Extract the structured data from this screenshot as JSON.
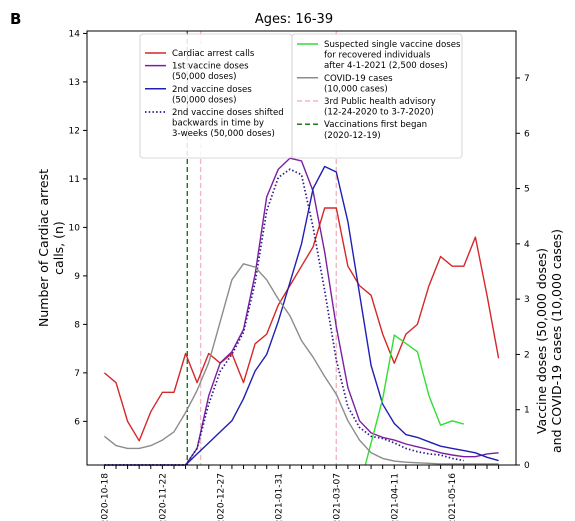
{
  "chart_data": {
    "type": "line",
    "panel_label": "B",
    "title": "Ages: 16-39",
    "ylabel_left": [
      "Number of Cardiac arrest",
      "calls, (n)"
    ],
    "ylabel_right": [
      "Vaccine doses (50,000 doses)",
      "and COVID-19 cases (10,000 cases)"
    ],
    "ylim_left": [
      5.1,
      14.05
    ],
    "ylim_right": [
      0,
      7.85
    ],
    "yticks_left": [
      "6",
      "7",
      "8",
      "9",
      "10",
      "11",
      "12",
      "13",
      "14"
    ],
    "yticks_right": [
      "0",
      "1",
      "2",
      "3",
      "4",
      "5",
      "6",
      "7"
    ],
    "xticks": [
      "2020-10-18",
      "2020-11-22",
      "2020-12-27",
      "2021-01-31",
      "2021-03-07",
      "2021-04-11",
      "2021-05-16"
    ],
    "x_range_weeks": [
      -1.5,
      35.5
    ],
    "grid": false,
    "legend_left": [
      {
        "label": [
          "Cardiac arrest calls"
        ],
        "color": "#d62728",
        "style": "solid"
      },
      {
        "label": [
          "1st vaccine doses",
          "(50,000 doses)"
        ],
        "color": "#7b1fa2",
        "style": "solid"
      },
      {
        "label": [
          "2nd vaccine doses",
          "(50,000 doses)"
        ],
        "color": "#1f1fb4",
        "style": "solid"
      },
      {
        "label": [
          "2nd vaccine doses shifted",
          "backwards in time by",
          "3-weeks (50,000 doses)"
        ],
        "color": "#2a1a8a",
        "style": "dotted"
      }
    ],
    "legend_right": [
      {
        "label": [
          "Suspected single vaccine doses",
          "for recovered individuals",
          "after 4-1-2021 (2,500 doses)"
        ],
        "color": "#33dd33",
        "style": "solid"
      },
      {
        "label": [
          "COVID-19 cases",
          "(10,000 cases)"
        ],
        "color": "#8c8c8c",
        "style": "solid"
      },
      {
        "label": [
          "3rd Public health advisory",
          "(12-24-2020 to 3-7-2020)"
        ],
        "color": "#f4b6c2",
        "style": "dashed"
      },
      {
        "label": [
          "Vaccinations first began",
          "(2020-12-19)"
        ],
        "color": "#1a7a1a",
        "style": "dashed"
      }
    ],
    "vlines": [
      {
        "x": 7.15,
        "color": "#1a7a1a",
        "style": "dashed"
      },
      {
        "x": 8.3,
        "color": "#f4b6c2",
        "style": "dashed"
      },
      {
        "x": 20.0,
        "color": "#f4b6c2",
        "style": "dashed"
      }
    ],
    "series": [
      {
        "axis": "left",
        "color": "#d62728",
        "style": "solid",
        "x": [
          0,
          1,
          2,
          3,
          4,
          5,
          6,
          7,
          8,
          9,
          10,
          11,
          12,
          13,
          14,
          15,
          16,
          17,
          18,
          19,
          20,
          21,
          22,
          23,
          24,
          25,
          26,
          27,
          28,
          29,
          30,
          31,
          32,
          33,
          34
        ],
        "values": [
          7.0,
          6.8,
          6.0,
          5.6,
          6.2,
          6.6,
          6.6,
          7.4,
          6.8,
          7.4,
          7.2,
          7.4,
          6.8,
          7.6,
          7.8,
          8.4,
          8.8,
          9.2,
          9.6,
          10.4,
          10.4,
          9.2,
          8.8,
          8.6,
          7.8,
          7.2,
          7.8,
          8.0,
          8.8,
          9.4,
          9.2,
          9.2,
          9.8,
          8.6,
          7.3
        ]
      },
      {
        "axis": "right",
        "color": "#7b1fa2",
        "style": "solid",
        "x": [
          7,
          8,
          9,
          10,
          11,
          12,
          13,
          14,
          15,
          16,
          17,
          18,
          19,
          20,
          21,
          22,
          23,
          24,
          25,
          26,
          27,
          28,
          29,
          30,
          31,
          32,
          33,
          34
        ],
        "values": [
          0,
          0.3,
          1.25,
          1.85,
          2.05,
          2.45,
          3.45,
          4.85,
          5.35,
          5.55,
          5.5,
          4.95,
          3.85,
          2.5,
          1.4,
          0.8,
          0.58,
          0.5,
          0.45,
          0.38,
          0.33,
          0.28,
          0.22,
          0.18,
          0.15,
          0.15,
          0.2,
          0.22
        ]
      },
      {
        "axis": "right",
        "color": "#1f1fb4",
        "style": "solid",
        "x": [
          0,
          1,
          2,
          3,
          4,
          5,
          6,
          7,
          8,
          9,
          10,
          11,
          12,
          13,
          14,
          15,
          16,
          17,
          18,
          19,
          20,
          21,
          22,
          23,
          24,
          25,
          26,
          27,
          28,
          29,
          30,
          31,
          32,
          33,
          34
        ],
        "values": [
          0,
          0,
          0,
          0,
          0,
          0,
          0,
          0,
          0.2,
          0.4,
          0.6,
          0.8,
          1.2,
          1.7,
          2.0,
          2.6,
          3.3,
          4.0,
          5.0,
          5.4,
          5.3,
          4.4,
          3.1,
          1.8,
          1.1,
          0.75,
          0.55,
          0.5,
          0.42,
          0.34,
          0.3,
          0.26,
          0.22,
          0.14,
          0.08
        ]
      },
      {
        "axis": "right",
        "color": "#2a1a8a",
        "style": "dotted",
        "x": [
          0,
          1,
          2,
          3,
          4,
          5,
          6,
          7,
          8,
          9,
          10,
          11,
          12,
          13,
          14,
          15,
          16,
          17,
          18,
          19,
          20,
          21,
          22,
          23,
          24,
          25,
          26,
          27,
          28,
          29,
          30,
          31
        ],
        "values": [
          0,
          0,
          0,
          0,
          0,
          0,
          0,
          0,
          0.3,
          1.1,
          1.7,
          2.0,
          2.4,
          3.3,
          4.6,
          5.2,
          5.35,
          5.25,
          4.3,
          3.15,
          1.9,
          1.05,
          0.68,
          0.52,
          0.48,
          0.4,
          0.3,
          0.24,
          0.2,
          0.18,
          0.12,
          0.08
        ]
      },
      {
        "axis": "right",
        "color": "#33dd33",
        "style": "solid",
        "x": [
          22.5,
          23,
          24,
          25,
          26,
          27,
          28,
          29,
          30,
          31
        ],
        "values": [
          0,
          0.4,
          1.2,
          2.35,
          2.2,
          2.05,
          1.25,
          0.72,
          0.8,
          0.74
        ]
      },
      {
        "axis": "right",
        "color": "#8c8c8c",
        "style": "solid",
        "x": [
          0,
          1,
          2,
          3,
          4,
          5,
          6,
          7,
          8,
          9,
          10,
          11,
          12,
          13,
          14,
          15,
          16,
          17,
          18,
          19,
          20,
          21,
          22,
          23,
          24,
          25,
          26,
          27,
          28,
          29,
          30,
          31,
          32,
          33,
          34
        ],
        "values": [
          0.52,
          0.35,
          0.3,
          0.3,
          0.35,
          0.45,
          0.6,
          0.95,
          1.35,
          1.85,
          2.6,
          3.35,
          3.64,
          3.58,
          3.35,
          3.0,
          2.7,
          2.25,
          1.95,
          1.6,
          1.28,
          0.8,
          0.45,
          0.22,
          0.12,
          0.07,
          0.05,
          0.04,
          0.03,
          0.02,
          0.02,
          0.02,
          0.02,
          0.02,
          0.02
        ]
      }
    ]
  }
}
